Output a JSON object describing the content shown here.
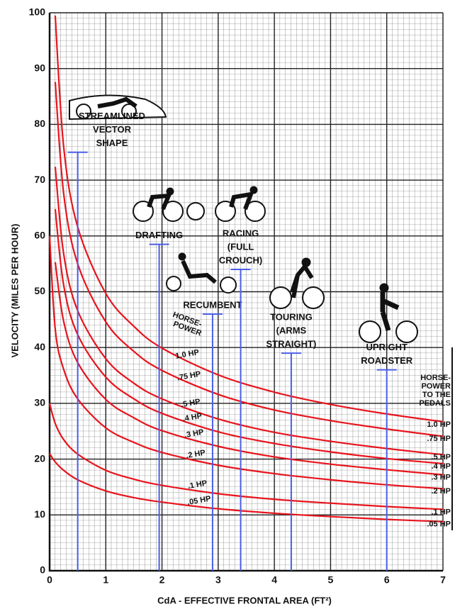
{
  "chart_data": {
    "type": "line",
    "xlabel": "CdA - EFFECTIVE FRONTAL AREA (FT²)",
    "ylabel": "VELOCITY (MILES PER HOUR)",
    "x": [
      0,
      0.1,
      0.25,
      0.5,
      1,
      1.5,
      2,
      3,
      4,
      5,
      6,
      7
    ],
    "series": [
      {
        "name": "1.0 HP",
        "color": "#e8141c",
        "values": [
          null,
          99.5,
          76,
          61.6,
          49.7,
          43.8,
          39.9,
          35.1,
          32,
          29.8,
          28.1,
          26.7
        ]
      },
      {
        "name": ".75 HP",
        "color": "#e8141c",
        "values": [
          null,
          87.6,
          67.6,
          55,
          44.6,
          39.3,
          35.9,
          31.6,
          28.8,
          26.9,
          25.4,
          24.1
        ]
      },
      {
        "name": ".5 HP",
        "color": "#e8141c",
        "values": [
          null,
          72.4,
          56.8,
          46.6,
          38,
          33.6,
          30.8,
          27.2,
          24.8,
          23.2,
          21.9,
          20.8
        ]
      },
      {
        "name": ".4 HP",
        "color": "#e8141c",
        "values": [
          null,
          64.8,
          51.2,
          42.3,
          34.7,
          30.8,
          28.2,
          24.9,
          22.8,
          21.3,
          20.1,
          19.2
        ]
      },
      {
        "name": ".3 HP",
        "color": "#e8141c",
        "values": [
          null,
          55.3,
          44.7,
          37.3,
          30.7,
          27.4,
          25.1,
          22.3,
          20.4,
          19.1,
          18.1,
          17.2
        ]
      },
      {
        "name": ".2 HP",
        "color": "#e8141c",
        "values": [
          60,
          43.3,
          36.1,
          30.8,
          25.6,
          23,
          21.2,
          18.9,
          17.4,
          16.3,
          15.4,
          14.7
        ]
      },
      {
        "name": ".1 HP",
        "color": "#e8141c",
        "values": [
          30,
          26.4,
          23.5,
          20.9,
          18,
          16.4,
          15.3,
          13.8,
          12.8,
          12.1,
          11.5,
          11
        ]
      },
      {
        "name": ".05 HP",
        "color": "#e8141c",
        "values": [
          21,
          19.5,
          18,
          16.3,
          14.3,
          13.1,
          12.3,
          11.1,
          10.3,
          9.7,
          9.2,
          8.8
        ]
      }
    ],
    "inner_heading": [
      "HORSE-",
      "POWER"
    ],
    "right_heading": [
      "HORSE-",
      "POWER",
      "TO THE",
      "PEDALS"
    ],
    "positions": [
      {
        "label": [
          "STREAMLINED",
          "VECTOR",
          "SHAPE"
        ],
        "x": 0.5,
        "top": 75
      },
      {
        "label": [
          "DRAFTING"
        ],
        "x": 1.95,
        "top": 58.5
      },
      {
        "label": [
          "RECUMBENT"
        ],
        "x": 2.9,
        "top": 46
      },
      {
        "label": [
          "RACING",
          "(FULL",
          "CROUCH)"
        ],
        "x": 3.4,
        "top": 54
      },
      {
        "label": [
          "TOURING",
          "(ARMS",
          "STRAIGHT)"
        ],
        "x": 4.3,
        "top": 39
      },
      {
        "label": [
          "UPRIGHT",
          "ROADSTER"
        ],
        "x": 6,
        "top": 36
      }
    ],
    "position_color": "#4a5ee8",
    "xlim": [
      0,
      7
    ],
    "ylim": [
      0,
      100
    ],
    "xticks": [
      0,
      1,
      2,
      3,
      4,
      5,
      6,
      7
    ],
    "yticks": [
      0,
      10,
      20,
      30,
      40,
      50,
      60,
      70,
      80,
      90,
      100
    ],
    "grid": true
  }
}
